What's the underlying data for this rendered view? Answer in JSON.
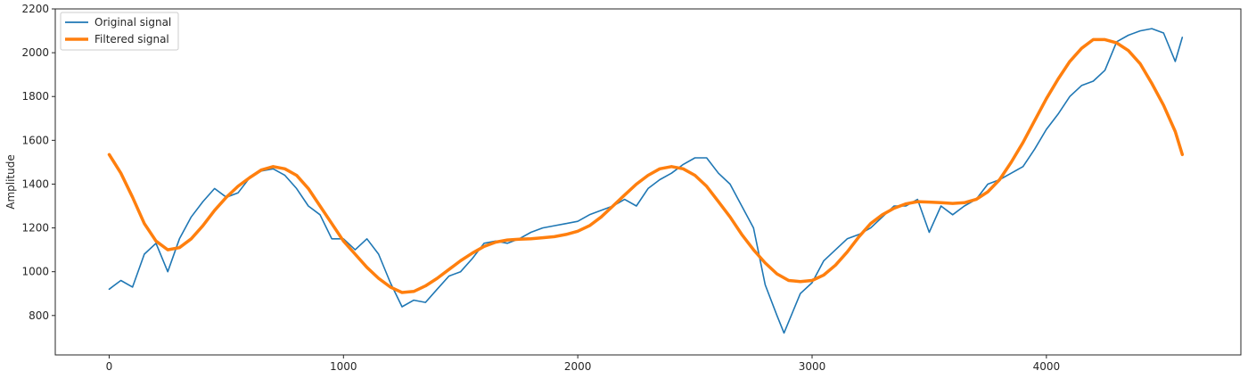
{
  "chart_data": {
    "type": "line",
    "xlabel": "",
    "ylabel": "Amplitude",
    "xlim": [
      -230,
      4830
    ],
    "ylim": [
      620,
      2200
    ],
    "xticks": [
      0,
      1000,
      2000,
      3000,
      4000
    ],
    "xtick_labels": [
      "0",
      "1000",
      "2000",
      "3000",
      "4000"
    ],
    "yticks": [
      800,
      1000,
      1200,
      1400,
      1600,
      1800,
      2000,
      2200
    ],
    "ytick_labels": [
      "800",
      "1000",
      "1200",
      "1400",
      "1600",
      "1800",
      "2000",
      "2200"
    ],
    "grid": false,
    "legend_position": "top-left",
    "series": [
      {
        "name": "Original signal",
        "color": "#1f77b4",
        "x": [
          0,
          50,
          100,
          150,
          200,
          250,
          300,
          350,
          400,
          450,
          500,
          550,
          600,
          650,
          700,
          750,
          800,
          850,
          900,
          950,
          1000,
          1050,
          1100,
          1150,
          1200,
          1250,
          1300,
          1350,
          1400,
          1450,
          1500,
          1550,
          1600,
          1650,
          1700,
          1750,
          1800,
          1850,
          1900,
          1950,
          2000,
          2050,
          2100,
          2150,
          2200,
          2250,
          2300,
          2350,
          2400,
          2450,
          2500,
          2550,
          2600,
          2650,
          2700,
          2750,
          2800,
          2850,
          2880,
          2950,
          3000,
          3050,
          3100,
          3150,
          3200,
          3250,
          3300,
          3350,
          3400,
          3450,
          3500,
          3550,
          3600,
          3650,
          3700,
          3750,
          3800,
          3850,
          3900,
          3950,
          4000,
          4050,
          4100,
          4150,
          4200,
          4250,
          4300,
          4350,
          4400,
          4450,
          4500,
          4550,
          4580
        ],
        "y": [
          920,
          960,
          930,
          1080,
          1130,
          1000,
          1150,
          1250,
          1320,
          1380,
          1340,
          1360,
          1430,
          1460,
          1470,
          1440,
          1380,
          1300,
          1260,
          1150,
          1150,
          1100,
          1150,
          1080,
          950,
          840,
          870,
          860,
          920,
          980,
          1000,
          1060,
          1130,
          1140,
          1130,
          1150,
          1180,
          1200,
          1210,
          1220,
          1230,
          1260,
          1280,
          1300,
          1330,
          1300,
          1380,
          1420,
          1450,
          1490,
          1520,
          1520,
          1450,
          1400,
          1300,
          1200,
          940,
          800,
          720,
          900,
          950,
          1050,
          1100,
          1150,
          1170,
          1200,
          1250,
          1300,
          1300,
          1330,
          1180,
          1300,
          1260,
          1300,
          1330,
          1400,
          1420,
          1450,
          1480,
          1560,
          1650,
          1720,
          1800,
          1850,
          1870,
          1920,
          2050,
          2080,
          2100,
          2110,
          2090,
          1960,
          2070
        ]
      },
      {
        "name": "Filtered signal",
        "color": "#ff7f0e",
        "x": [
          0,
          50,
          100,
          150,
          200,
          250,
          300,
          350,
          400,
          450,
          500,
          550,
          600,
          650,
          700,
          750,
          800,
          850,
          900,
          950,
          1000,
          1050,
          1100,
          1150,
          1200,
          1250,
          1300,
          1350,
          1400,
          1450,
          1500,
          1550,
          1600,
          1650,
          1700,
          1750,
          1800,
          1850,
          1900,
          1950,
          2000,
          2050,
          2100,
          2150,
          2200,
          2250,
          2300,
          2350,
          2400,
          2450,
          2500,
          2550,
          2600,
          2650,
          2700,
          2750,
          2800,
          2850,
          2900,
          2950,
          3000,
          3050,
          3100,
          3150,
          3200,
          3250,
          3300,
          3350,
          3400,
          3450,
          3500,
          3550,
          3600,
          3650,
          3700,
          3750,
          3800,
          3850,
          3900,
          3950,
          4000,
          4050,
          4100,
          4150,
          4200,
          4250,
          4300,
          4350,
          4400,
          4450,
          4500,
          4550,
          4580
        ],
        "y": [
          1535,
          1450,
          1340,
          1220,
          1140,
          1100,
          1110,
          1150,
          1210,
          1280,
          1340,
          1390,
          1430,
          1465,
          1480,
          1470,
          1440,
          1380,
          1300,
          1220,
          1140,
          1080,
          1020,
          970,
          930,
          905,
          910,
          935,
          970,
          1010,
          1050,
          1085,
          1115,
          1135,
          1145,
          1148,
          1150,
          1155,
          1160,
          1170,
          1185,
          1210,
          1250,
          1300,
          1350,
          1400,
          1440,
          1470,
          1480,
          1470,
          1440,
          1390,
          1320,
          1250,
          1170,
          1100,
          1040,
          990,
          960,
          955,
          960,
          985,
          1030,
          1090,
          1160,
          1220,
          1260,
          1290,
          1310,
          1320,
          1318,
          1315,
          1312,
          1315,
          1330,
          1365,
          1420,
          1500,
          1590,
          1690,
          1790,
          1880,
          1960,
          2020,
          2060,
          2060,
          2045,
          2010,
          1950,
          1860,
          1760,
          1640,
          1535
        ]
      }
    ]
  }
}
